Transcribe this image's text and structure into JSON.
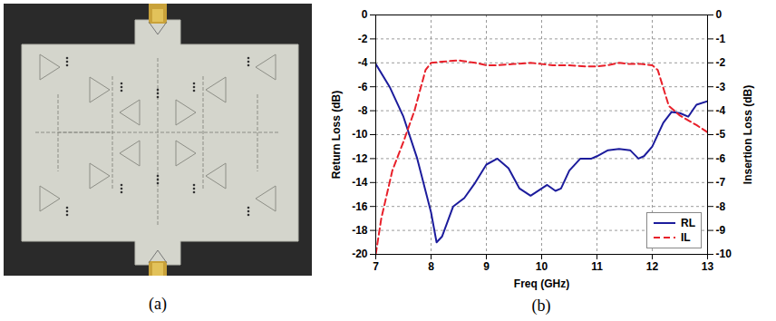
{
  "photo": {
    "caption": "(a)"
  },
  "chart_data": {
    "type": "line",
    "caption": "(b)",
    "x_label": "Freq (GHz)",
    "y_label": "Return Loss (dB)",
    "y2_label": "Insertion Loss (dB)",
    "xlim": [
      7,
      13
    ],
    "xticks": [
      7,
      8,
      9,
      10,
      11,
      12,
      13
    ],
    "ylim": [
      -20,
      0
    ],
    "yticks": [
      -20,
      -18,
      -16,
      -14,
      -12,
      -10,
      -8,
      -6,
      -4,
      -2,
      0
    ],
    "y2lim": [
      -10,
      0
    ],
    "y2ticks": [
      -10,
      -9,
      -8,
      -7,
      -6,
      -5,
      -4,
      -3,
      -2,
      -1,
      0
    ],
    "grid": true,
    "legend": "lower right",
    "series": [
      {
        "name": "RL",
        "color": "#1c1c9c",
        "line_style": "solid",
        "x": [
          7,
          7.25,
          7.5,
          7.75,
          8.0,
          8.1,
          8.2,
          8.4,
          8.6,
          8.8,
          9.0,
          9.2,
          9.4,
          9.6,
          9.8,
          10.0,
          10.1,
          10.25,
          10.35,
          10.5,
          10.7,
          10.9,
          11.0,
          11.2,
          11.4,
          11.6,
          11.75,
          11.85,
          12.0,
          12.2,
          12.35,
          12.5,
          12.65,
          12.8,
          13.0
        ],
        "values": [
          -4.1,
          -6,
          -8.5,
          -12,
          -16.5,
          -19,
          -18.5,
          -16,
          -15.3,
          -14,
          -12.5,
          -12,
          -12.8,
          -14.5,
          -15.1,
          -14.5,
          -14.2,
          -14.7,
          -14.5,
          -13,
          -12,
          -12,
          -11.8,
          -11.3,
          -11.2,
          -11.3,
          -12,
          -11.8,
          -11,
          -9,
          -8.1,
          -8.2,
          -8.5,
          -7.5,
          -7.2
        ]
      },
      {
        "name": "IL",
        "color": "#e8202a",
        "line_style": "dashed",
        "axis": "y2",
        "x": [
          7.0,
          7.1,
          7.3,
          7.5,
          7.7,
          7.9,
          8.0,
          8.2,
          8.5,
          8.8,
          9.0,
          9.2,
          9.5,
          9.8,
          10.0,
          10.2,
          10.5,
          10.8,
          11.0,
          11.2,
          11.4,
          11.6,
          11.8,
          12.0,
          12.1,
          12.3,
          12.5,
          12.8,
          13.0
        ],
        "values": [
          -10,
          -8.5,
          -6.5,
          -5.3,
          -4,
          -2.3,
          -2.0,
          -1.95,
          -1.9,
          -2.0,
          -2.1,
          -2.1,
          -2.05,
          -2.0,
          -2.05,
          -2.1,
          -2.1,
          -2.15,
          -2.15,
          -2.1,
          -2.0,
          -2.05,
          -2.05,
          -2.1,
          -2.3,
          -3.8,
          -4.2,
          -4.6,
          -4.9
        ]
      }
    ]
  }
}
